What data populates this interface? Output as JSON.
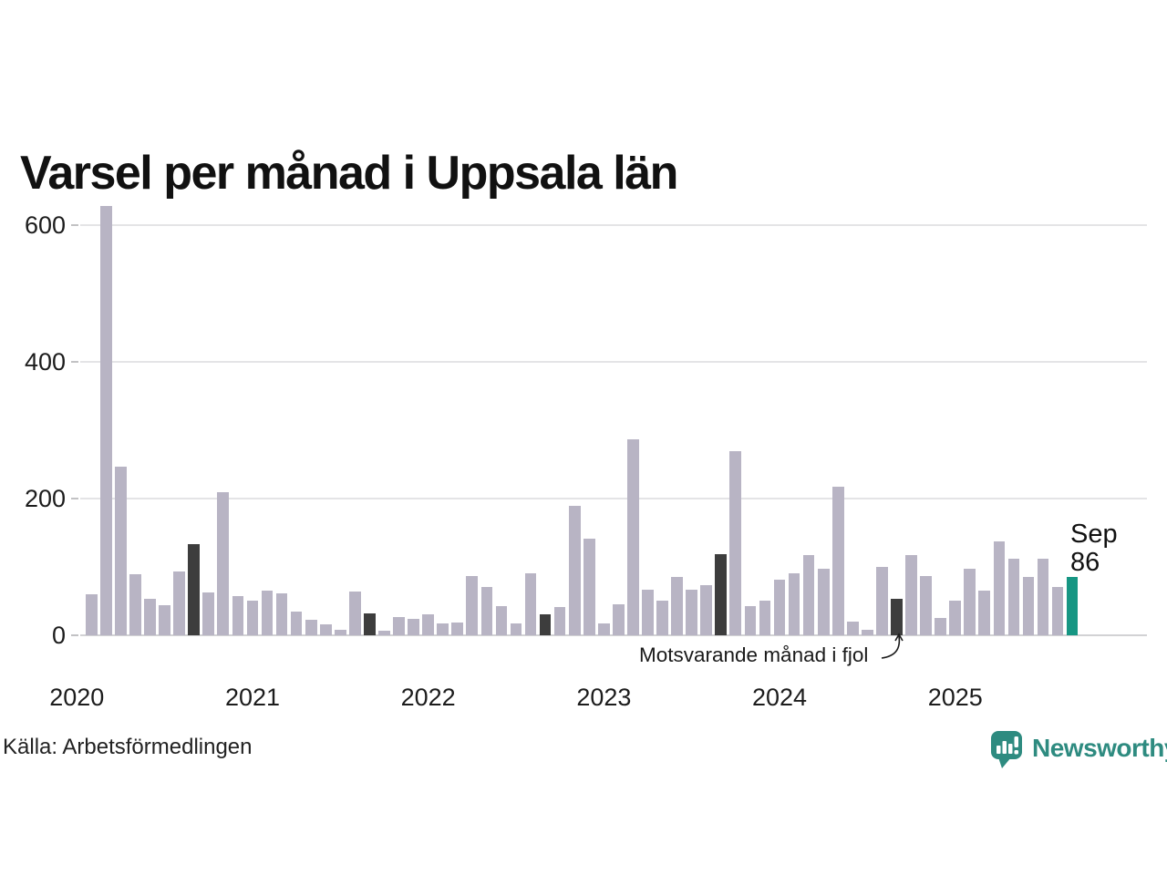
{
  "title": "Varsel per månad i Uppsala län",
  "source": "Källa: Arbetsförmedlingen",
  "brand": {
    "name": "Newsworthy"
  },
  "annotation": {
    "text": "Motsvarande månad i fjol"
  },
  "latest_label": {
    "month": "Sep",
    "value": "86"
  },
  "colors": {
    "bar": "#b8b4c4",
    "highlight": "#3d3d3d",
    "latest": "#169683",
    "grid": "#e4e4e6",
    "axis": "#d2d2d4",
    "brand": "#2e8b80",
    "text": "#1c1c1c"
  },
  "chart_data": {
    "type": "bar",
    "title": "Varsel per månad i Uppsala län",
    "xlabel": "",
    "ylabel": "",
    "ylim": [
      0,
      650
    ],
    "yticks": [
      0,
      200,
      400,
      600
    ],
    "grid": true,
    "year_labels": [
      "2020",
      "2021",
      "2022",
      "2023",
      "2024",
      "2025"
    ],
    "highlight_note": "Septembers 2020-2024 shown dark as 'same month previous year'; Sep 2025 shown teal as latest value",
    "months": [
      {
        "m": "2020-02",
        "v": 60,
        "role": "normal"
      },
      {
        "m": "2020-03",
        "v": 628,
        "role": "normal"
      },
      {
        "m": "2020-04",
        "v": 247,
        "role": "normal"
      },
      {
        "m": "2020-05",
        "v": 90,
        "role": "normal"
      },
      {
        "m": "2020-06",
        "v": 53,
        "role": "normal"
      },
      {
        "m": "2020-07",
        "v": 44,
        "role": "normal"
      },
      {
        "m": "2020-08",
        "v": 93,
        "role": "normal"
      },
      {
        "m": "2020-09",
        "v": 134,
        "role": "prev_year_sep"
      },
      {
        "m": "2020-10",
        "v": 63,
        "role": "normal"
      },
      {
        "m": "2020-11",
        "v": 210,
        "role": "normal"
      },
      {
        "m": "2020-12",
        "v": 58,
        "role": "normal"
      },
      {
        "m": "2021-01",
        "v": 51,
        "role": "normal"
      },
      {
        "m": "2021-02",
        "v": 66,
        "role": "normal"
      },
      {
        "m": "2021-03",
        "v": 61,
        "role": "normal"
      },
      {
        "m": "2021-04",
        "v": 35,
        "role": "normal"
      },
      {
        "m": "2021-05",
        "v": 23,
        "role": "normal"
      },
      {
        "m": "2021-06",
        "v": 16,
        "role": "normal"
      },
      {
        "m": "2021-07",
        "v": 8,
        "role": "normal"
      },
      {
        "m": "2021-08",
        "v": 64,
        "role": "normal"
      },
      {
        "m": "2021-09",
        "v": 32,
        "role": "prev_year_sep"
      },
      {
        "m": "2021-10",
        "v": 7,
        "role": "normal"
      },
      {
        "m": "2021-11",
        "v": 27,
        "role": "normal"
      },
      {
        "m": "2021-12",
        "v": 24,
        "role": "normal"
      },
      {
        "m": "2022-01",
        "v": 31,
        "role": "normal"
      },
      {
        "m": "2022-02",
        "v": 17,
        "role": "normal"
      },
      {
        "m": "2022-03",
        "v": 19,
        "role": "normal"
      },
      {
        "m": "2022-04",
        "v": 87,
        "role": "normal"
      },
      {
        "m": "2022-05",
        "v": 71,
        "role": "normal"
      },
      {
        "m": "2022-06",
        "v": 43,
        "role": "normal"
      },
      {
        "m": "2022-07",
        "v": 18,
        "role": "normal"
      },
      {
        "m": "2022-08",
        "v": 91,
        "role": "normal"
      },
      {
        "m": "2022-09",
        "v": 31,
        "role": "prev_year_sep"
      },
      {
        "m": "2022-10",
        "v": 42,
        "role": "normal"
      },
      {
        "m": "2022-11",
        "v": 190,
        "role": "normal"
      },
      {
        "m": "2022-12",
        "v": 142,
        "role": "normal"
      },
      {
        "m": "2023-01",
        "v": 17,
        "role": "normal"
      },
      {
        "m": "2023-02",
        "v": 46,
        "role": "normal"
      },
      {
        "m": "2023-03",
        "v": 287,
        "role": "normal"
      },
      {
        "m": "2023-04",
        "v": 67,
        "role": "normal"
      },
      {
        "m": "2023-05",
        "v": 51,
        "role": "normal"
      },
      {
        "m": "2023-06",
        "v": 85,
        "role": "normal"
      },
      {
        "m": "2023-07",
        "v": 67,
        "role": "normal"
      },
      {
        "m": "2023-08",
        "v": 74,
        "role": "normal"
      },
      {
        "m": "2023-09",
        "v": 119,
        "role": "prev_year_sep"
      },
      {
        "m": "2023-10",
        "v": 269,
        "role": "normal"
      },
      {
        "m": "2023-11",
        "v": 43,
        "role": "normal"
      },
      {
        "m": "2023-12",
        "v": 51,
        "role": "normal"
      },
      {
        "m": "2024-01",
        "v": 81,
        "role": "normal"
      },
      {
        "m": "2024-02",
        "v": 91,
        "role": "normal"
      },
      {
        "m": "2024-03",
        "v": 118,
        "role": "normal"
      },
      {
        "m": "2024-04",
        "v": 97,
        "role": "normal"
      },
      {
        "m": "2024-05",
        "v": 218,
        "role": "normal"
      },
      {
        "m": "2024-06",
        "v": 20,
        "role": "normal"
      },
      {
        "m": "2024-07",
        "v": 8,
        "role": "normal"
      },
      {
        "m": "2024-08",
        "v": 100,
        "role": "normal"
      },
      {
        "m": "2024-09",
        "v": 54,
        "role": "prev_year_sep"
      },
      {
        "m": "2024-10",
        "v": 117,
        "role": "normal"
      },
      {
        "m": "2024-11",
        "v": 87,
        "role": "normal"
      },
      {
        "m": "2024-12",
        "v": 25,
        "role": "normal"
      },
      {
        "m": "2025-01",
        "v": 51,
        "role": "normal"
      },
      {
        "m": "2025-02",
        "v": 98,
        "role": "normal"
      },
      {
        "m": "2025-03",
        "v": 65,
        "role": "normal"
      },
      {
        "m": "2025-04",
        "v": 138,
        "role": "normal"
      },
      {
        "m": "2025-05",
        "v": 112,
        "role": "normal"
      },
      {
        "m": "2025-06",
        "v": 86,
        "role": "normal"
      },
      {
        "m": "2025-07",
        "v": 112,
        "role": "normal"
      },
      {
        "m": "2025-08",
        "v": 71,
        "role": "normal"
      },
      {
        "m": "2025-09",
        "v": 86,
        "role": "latest"
      }
    ]
  }
}
